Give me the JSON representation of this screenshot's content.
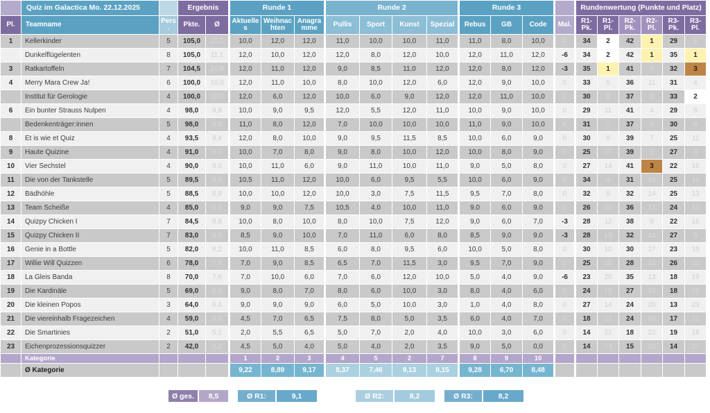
{
  "title": "Quiz im Galactica Mo. 22.12.2025",
  "colors": {
    "teal_header": "#5ba2c2",
    "teal_light": "#8cbed6",
    "purple_header": "#7d6ca0",
    "purple_light": "#a192bd",
    "lavender": "#b4aacb",
    "row_dark": "#c9c9c9",
    "row_light": "#f0f0f0",
    "gold": "#fdf2b0",
    "silver": "#ffffff",
    "bronze": "#bd8446",
    "avg_teal": "#76b5d0",
    "avg_teal_light": "#abd0e0"
  },
  "header": {
    "groups": {
      "ergebnis": "Ergebnis",
      "runde1": "Runde 1",
      "runde2": "Runde 2",
      "runde3": "Runde 3",
      "rundenwertung": "Rundenwertung (Punkte und Platz)"
    },
    "columns": {
      "pl": "Pl.",
      "team": "Teamname",
      "pers": "Pers.",
      "pkte": "Pkte.",
      "avg": "Ø",
      "aktuelles": "Aktuelles",
      "weihnachten": "Weihnachten",
      "anagramme": "Anagramme",
      "pullis": "Pullis",
      "sport": "Sport",
      "kunst": "Kunst",
      "spezial": "Spezial",
      "rebus": "Rebus",
      "gb": "GB",
      "code": "Code",
      "mal": "Mal.",
      "r1pk": "R1-Pk.",
      "r1pl": "R1-Pl.",
      "r2pk": "R2-Pk.",
      "r2pl": "R2-Pl.",
      "r3pk": "R3-Pk.",
      "r3pl": "R3-Pl."
    }
  },
  "rows": [
    {
      "pl": "1",
      "team": "Kellerkinder",
      "pers": "5",
      "pkte": "105,0",
      "avg": "10,5",
      "r1": [
        "10,0",
        "12,0",
        "12,0"
      ],
      "r2": [
        "11,0",
        "10,0",
        "10,0",
        "11,0"
      ],
      "r3": [
        "11,0",
        "8,0",
        "10,0"
      ],
      "mal": "0",
      "wertung": {
        "r1pk": "34",
        "r1pl": "2",
        "r2pk": "42",
        "r2pl": "1",
        "r3pk": "29",
        "r3pl": "6"
      },
      "medals": {
        "r1pl": "silver",
        "r2pl": "gold"
      }
    },
    {
      "pl": "",
      "team": "Dunkelflügelenten",
      "pers": "8",
      "pkte": "105,0",
      "avg": "11,1",
      "r1": [
        "12,0",
        "10,0",
        "12,0"
      ],
      "r2": [
        "12,0",
        "8,0",
        "12,0",
        "10,0"
      ],
      "r3": [
        "12,0",
        "11,0",
        "12,0"
      ],
      "mal": "-6",
      "wertung": {
        "r1pk": "34",
        "r1pl": "2",
        "r2pk": "42",
        "r2pl": "1",
        "r3pk": "35",
        "r3pl": "1"
      },
      "medals": {
        "r1pl": "silver",
        "r2pl": "gold",
        "r3pl": "gold"
      }
    },
    {
      "pl": "3",
      "team": "Ratkartoffeln",
      "pers": "7",
      "pkte": "104,5",
      "avg": "10,8",
      "r1": [
        "12,0",
        "11,0",
        "12,0"
      ],
      "r2": [
        "9,0",
        "8,5",
        "11,0",
        "12,0"
      ],
      "r3": [
        "12,0",
        "8,0",
        "12,0"
      ],
      "mal": "-3",
      "wertung": {
        "r1pk": "35",
        "r1pl": "1",
        "r2pk": "41",
        "r2pl": "4",
        "r3pk": "32",
        "r3pl": "3"
      },
      "medals": {
        "r1pl": "gold",
        "r3pl": "bronze"
      }
    },
    {
      "pl": "4",
      "team": "Merry Mara Crew Ja!",
      "pers": "6",
      "pkte": "100,0",
      "avg": "10,0",
      "r1": [
        "12,0",
        "11,0",
        "10,0"
      ],
      "r2": [
        "8,0",
        "10,0",
        "12,0",
        "6,0"
      ],
      "r3": [
        "12,0",
        "9,0",
        "10,0"
      ],
      "mal": "0",
      "wertung": {
        "r1pk": "33",
        "r1pl": "5",
        "r2pk": "36",
        "r2pl": "11",
        "r3pk": "31",
        "r3pl": "4"
      },
      "medals": {}
    },
    {
      "pl": "",
      "team": "Institut für Gerologie",
      "pers": "4",
      "pkte": "100,0",
      "avg": "10,0",
      "r1": [
        "12,0",
        "6,0",
        "12,0"
      ],
      "r2": [
        "10,0",
        "6,0",
        "9,0",
        "12,0"
      ],
      "r3": [
        "12,0",
        "11,0",
        "10,0"
      ],
      "mal": "0",
      "wertung": {
        "r1pk": "30",
        "r1pl": "8",
        "r2pk": "37",
        "r2pl": "9",
        "r3pk": "33",
        "r3pl": "2"
      },
      "medals": {
        "r3pl": "silver"
      }
    },
    {
      "pl": "6",
      "team": "Ein bunter Strauss Nulpen",
      "pers": "4",
      "pkte": "98,0",
      "avg": "9,8",
      "r1": [
        "10,0",
        "9,0",
        "9,5"
      ],
      "r2": [
        "12,0",
        "5,5",
        "12,0",
        "11,0"
      ],
      "r3": [
        "10,0",
        "9,0",
        "10,0"
      ],
      "mal": "0",
      "wertung": {
        "r1pk": "29",
        "r1pl": "11",
        "r2pk": "41",
        "r2pl": "4",
        "r3pk": "29",
        "r3pl": "6"
      },
      "medals": {}
    },
    {
      "pl": "",
      "team": "Bedenkenträger:innen",
      "pers": "5",
      "pkte": "98,0",
      "avg": "9,8",
      "r1": [
        "11,0",
        "8,0",
        "12,0"
      ],
      "r2": [
        "7,0",
        "10,0",
        "10,0",
        "10,0"
      ],
      "r3": [
        "11,0",
        "9,0",
        "10,0"
      ],
      "mal": "0",
      "wertung": {
        "r1pk": "31",
        "r1pl": "7",
        "r2pk": "37",
        "r2pl": "9",
        "r3pk": "30",
        "r3pl": "5"
      },
      "medals": {}
    },
    {
      "pl": "8",
      "team": "Et is wie et Quiz",
      "pers": "4",
      "pkte": "93,5",
      "avg": "9,4",
      "r1": [
        "12,0",
        "8,0",
        "10,0"
      ],
      "r2": [
        "9,0",
        "9,5",
        "11,5",
        "8,5"
      ],
      "r3": [
        "10,0",
        "6,0",
        "9,0"
      ],
      "mal": "0",
      "wertung": {
        "r1pk": "30",
        "r1pl": "8",
        "r2pk": "39",
        "r2pl": "7",
        "r3pk": "25",
        "r3pl": "11"
      },
      "medals": {}
    },
    {
      "pl": "9",
      "team": "Haute Quizine",
      "pers": "4",
      "pkte": "91,0",
      "avg": "9,1",
      "r1": [
        "10,0",
        "7,0",
        "8,0"
      ],
      "r2": [
        "9,0",
        "8,0",
        "10,0",
        "12,0"
      ],
      "r3": [
        "10,0",
        "8,0",
        "9,0"
      ],
      "mal": "0",
      "wertung": {
        "r1pk": "25",
        "r1pl": "17",
        "r2pk": "39",
        "r2pl": "6",
        "r3pk": "27",
        "r3pl": "8"
      },
      "medals": {}
    },
    {
      "pl": "10",
      "team": "Vier Sechstel",
      "pers": "4",
      "pkte": "90,0",
      "avg": "9,0",
      "r1": [
        "10,0",
        "11,0",
        "6,0"
      ],
      "r2": [
        "9,0",
        "11,0",
        "10,0",
        "11,0"
      ],
      "r3": [
        "9,0",
        "5,0",
        "8,0"
      ],
      "mal": "0",
      "wertung": {
        "r1pk": "27",
        "r1pl": "14",
        "r2pk": "41",
        "r2pl": "3",
        "r3pk": "22",
        "r3pl": "16"
      },
      "medals": {
        "r2pl": "bronze"
      }
    },
    {
      "pl": "11",
      "team": "Die von der Tankstelle",
      "pers": "5",
      "pkte": "89,5",
      "avg": "9,0",
      "r1": [
        "10,5",
        "11,0",
        "12,0"
      ],
      "r2": [
        "10,0",
        "6,0",
        "9,5",
        "5,5"
      ],
      "r3": [
        "10,0",
        "6,0",
        "9,0"
      ],
      "mal": "0",
      "wertung": {
        "r1pk": "34",
        "r1pl": "4",
        "r2pk": "31",
        "r2pl": "16",
        "r3pk": "25",
        "r3pl": "11"
      },
      "medals": {}
    },
    {
      "pl": "12",
      "team": "Bädhöhle",
      "pers": "5",
      "pkte": "88,5",
      "avg": "8,9",
      "r1": [
        "10,0",
        "10,0",
        "12,0"
      ],
      "r2": [
        "10,0",
        "3,0",
        "7,5",
        "11,5"
      ],
      "r3": [
        "9,5",
        "7,0",
        "8,0"
      ],
      "mal": "0",
      "wertung": {
        "r1pk": "32",
        "r1pl": "6",
        "r2pk": "32",
        "r2pl": "14",
        "r3pk": "25",
        "r3pl": "13"
      },
      "medals": {}
    },
    {
      "pl": "13",
      "team": "Team Scheiße",
      "pers": "4",
      "pkte": "85,0",
      "avg": "8,5",
      "r1": [
        "9,0",
        "9,0",
        "7,5"
      ],
      "r2": [
        "10,5",
        "4,0",
        "10,0",
        "11,0"
      ],
      "r3": [
        "9,0",
        "6,0",
        "9,0"
      ],
      "mal": "0",
      "wertung": {
        "r1pk": "26",
        "r1pl": "16",
        "r2pk": "36",
        "r2pl": "12",
        "r3pk": "24",
        "r3pl": "14"
      },
      "medals": {}
    },
    {
      "pl": "14",
      "team": "Quizpy Chicken I",
      "pers": "7",
      "pkte": "84,5",
      "avg": "8,8",
      "r1": [
        "10,0",
        "8,0",
        "10,0"
      ],
      "r2": [
        "8,0",
        "10,0",
        "7,5",
        "12,0"
      ],
      "r3": [
        "9,0",
        "6,0",
        "7,0"
      ],
      "mal": "-3",
      "wertung": {
        "r1pk": "28",
        "r1pl": "12",
        "r2pk": "38",
        "r2pl": "8",
        "r3pk": "22",
        "r3pl": "16"
      },
      "medals": {}
    },
    {
      "pl": "15",
      "team": "Quizpy Chicken II",
      "pers": "7",
      "pkte": "83,0",
      "avg": "8,6",
      "r1": [
        "8,5",
        "9,0",
        "10,0"
      ],
      "r2": [
        "7,0",
        "11,0",
        "6,0",
        "8,0"
      ],
      "r3": [
        "8,5",
        "9,0",
        "9,0"
      ],
      "mal": "-3",
      "wertung": {
        "r1pk": "28",
        "r1pl": "13",
        "r2pk": "32",
        "r2pl": "14",
        "r3pk": "27",
        "r3pl": "9"
      },
      "medals": {}
    },
    {
      "pl": "16",
      "team": "Genie in a Bottle",
      "pers": "5",
      "pkte": "82,0",
      "avg": "8,2",
      "r1": [
        "10,0",
        "11,0",
        "8,5"
      ],
      "r2": [
        "6,0",
        "8,0",
        "9,5",
        "6,0"
      ],
      "r3": [
        "10,0",
        "5,0",
        "8,0"
      ],
      "mal": "0",
      "wertung": {
        "r1pk": "30",
        "r1pl": "10",
        "r2pk": "30",
        "r2pl": "17",
        "r3pk": "23",
        "r3pl": "15"
      },
      "medals": {}
    },
    {
      "pl": "17",
      "team": "Willie Will Quizzen",
      "pers": "6",
      "pkte": "78,0",
      "avg": "7,8",
      "r1": [
        "7,0",
        "9,0",
        "8,5"
      ],
      "r2": [
        "6,5",
        "7,0",
        "11,5",
        "3,0"
      ],
      "r3": [
        "9,5",
        "7,0",
        "9,0"
      ],
      "mal": "0",
      "wertung": {
        "r1pk": "25",
        "r1pl": "18",
        "r2pk": "28",
        "r2pl": "18",
        "r3pk": "26",
        "r3pl": "10"
      },
      "medals": {}
    },
    {
      "pl": "18",
      "team": "La Gleis Banda",
      "pers": "8",
      "pkte": "70,0",
      "avg": "7,6",
      "r1": [
        "7,0",
        "10,0",
        "6,0"
      ],
      "r2": [
        "7,0",
        "6,0",
        "12,0",
        "10,0"
      ],
      "r3": [
        "5,0",
        "4,0",
        "9,0"
      ],
      "mal": "-6",
      "wertung": {
        "r1pk": "23",
        "r1pl": "20",
        "r2pk": "35",
        "r2pl": "13",
        "r3pk": "18",
        "r3pl": "19"
      },
      "medals": {}
    },
    {
      "pl": "19",
      "team": "Die Kardinäle",
      "pers": "5",
      "pkte": "69,0",
      "avg": "6,9",
      "r1": [
        "9,0",
        "8,0",
        "7,0"
      ],
      "r2": [
        "8,0",
        "6,0",
        "10,0",
        "3,0"
      ],
      "r3": [
        "8,0",
        "4,0",
        "6,0"
      ],
      "mal": "0",
      "wertung": {
        "r1pk": "24",
        "r1pl": "19",
        "r2pk": "27",
        "r2pl": "19",
        "r3pk": "18",
        "r3pl": "19"
      },
      "medals": {}
    },
    {
      "pl": "20",
      "team": "Die kleinen Popos",
      "pers": "3",
      "pkte": "64,0",
      "avg": "6,4",
      "r1": [
        "9,0",
        "9,0",
        "9,0"
      ],
      "r2": [
        "6,0",
        "5,0",
        "10,0",
        "3,0"
      ],
      "r3": [
        "1,0",
        "4,0",
        "8,0"
      ],
      "mal": "0",
      "wertung": {
        "r1pk": "27",
        "r1pl": "14",
        "r2pk": "24",
        "r2pl": "20",
        "r3pk": "13",
        "r3pl": "23"
      },
      "medals": {}
    },
    {
      "pl": "21",
      "team": "Die viereinhalb Fragezeichen",
      "pers": "4",
      "pkte": "59,0",
      "avg": "5,9",
      "r1": [
        "4,5",
        "7,0",
        "6,5"
      ],
      "r2": [
        "7,5",
        "8,0",
        "5,0",
        "3,5"
      ],
      "r3": [
        "6,0",
        "4,0",
        "7,0"
      ],
      "mal": "0",
      "wertung": {
        "r1pk": "18",
        "r1pl": "21",
        "r2pk": "24",
        "r2pl": "20",
        "r3pk": "17",
        "r3pl": "21"
      },
      "medals": {}
    },
    {
      "pl": "22",
      "team": "Die Smartinies",
      "pers": "2",
      "pkte": "51,0",
      "avg": "5,1",
      "r1": [
        "2,0",
        "5,5",
        "6,5"
      ],
      "r2": [
        "5,0",
        "7,0",
        "2,0",
        "4,0"
      ],
      "r3": [
        "10,0",
        "3,0",
        "6,0"
      ],
      "mal": "0",
      "wertung": {
        "r1pk": "14",
        "r1pl": "22",
        "r2pk": "18",
        "r2pl": "22",
        "r3pk": "19",
        "r3pl": "18"
      },
      "medals": {}
    },
    {
      "pl": "23",
      "team": "Eichenprozessionsquizzer",
      "pers": "2",
      "pkte": "42,0",
      "avg": "4,2",
      "r1": [
        "4,5",
        "5,0",
        "4,0"
      ],
      "r2": [
        "5,0",
        "4,0",
        "2,0",
        "3,5"
      ],
      "r3": [
        "9,0",
        "5,0",
        "0,0"
      ],
      "mal": "0",
      "wertung": {
        "r1pk": "14",
        "r1pl": "23",
        "r2pk": "15",
        "r2pl": "23",
        "r3pk": "14",
        "r3pl": "22"
      },
      "medals": {}
    }
  ],
  "kategorie": {
    "label": "Kategorie",
    "numbers": [
      "1",
      "2",
      "3",
      "4",
      "5",
      "2",
      "7",
      "8",
      "9",
      "10"
    ]
  },
  "avg_row": {
    "label": "Ø Kategorie",
    "values": [
      "9,22",
      "8,89",
      "9,17",
      "8,37",
      "7,46",
      "9,13",
      "8,15",
      "9,28",
      "6,70",
      "8,48"
    ]
  },
  "summary": [
    {
      "label": "Ø ges.",
      "value": "8,5"
    },
    {
      "label": "Ø R1:",
      "value": "9,1"
    },
    {
      "label": "Ø R2:",
      "value": "8,2"
    },
    {
      "label": "Ø R3:",
      "value": "8,2"
    }
  ]
}
